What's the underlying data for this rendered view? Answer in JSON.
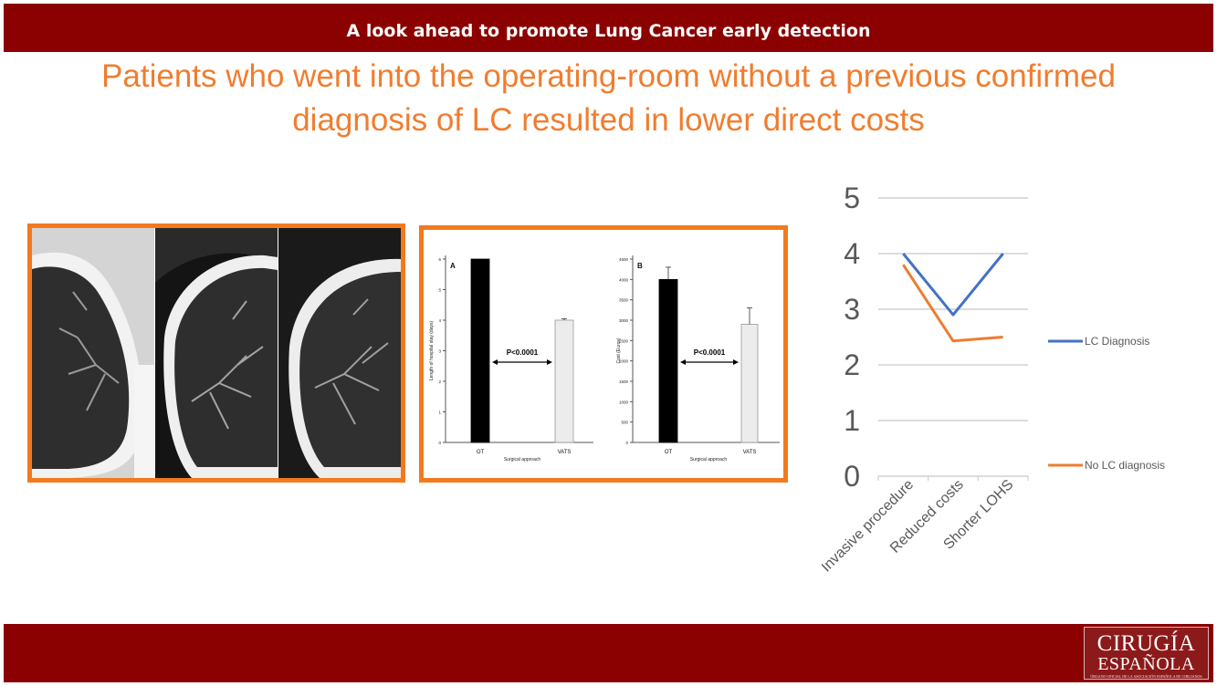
{
  "header": {
    "title": "A look ahead to promote Lung Cancer early detection"
  },
  "headline": {
    "line1": "Patients who went into the operating-room without a previous confirmed",
    "line2": "diagnosis of LC resulted in lower direct costs"
  },
  "colors": {
    "brand": "#8b0000",
    "accent": "#f27a1e",
    "lc_diagnosis": "#4472c4",
    "no_lc_diagnosis": "#ed7d31"
  },
  "logo": {
    "line1": "CIRUGÍA",
    "line2": "ESPAÑOLA",
    "line3": "ÓRGANO OFICIAL DE LA ASOCIACIÓN ESPAÑOLA DE CIRUJANOS"
  },
  "chart_data": [
    {
      "type": "bar",
      "panel": "A",
      "categories": [
        "OT",
        "VATS"
      ],
      "values": [
        6,
        4
      ],
      "errors": [
        0,
        0.05
      ],
      "ylabel": "Length of hospital stay (days)",
      "xlabel": "Surgical approach",
      "ylim": [
        0,
        6
      ],
      "yticks": [
        "0",
        "1",
        "2",
        "3",
        "4",
        "5",
        "6"
      ],
      "annotation": "P<0.0001"
    },
    {
      "type": "bar",
      "panel": "B",
      "categories": [
        "OT",
        "VATS"
      ],
      "values": [
        4000,
        2900
      ],
      "errors": [
        300,
        400
      ],
      "ylabel": "Cost (Euros)",
      "xlabel": "Surgical approach",
      "ylim": [
        0,
        4500
      ],
      "yticks": [
        "0",
        "500",
        "1000",
        "1500",
        "2000",
        "2500",
        "3000",
        "3500",
        "4000",
        "4500"
      ],
      "annotation": "P<0.0001"
    },
    {
      "type": "line",
      "categories": [
        "Invasive procedure",
        "Reduced costs",
        "Shorter LOHS"
      ],
      "series": [
        {
          "name": "LC Diagnosis",
          "values": [
            4.0,
            2.9,
            4.0
          ]
        },
        {
          "name": "No LC diagnosis",
          "values": [
            3.8,
            2.43,
            2.5
          ]
        }
      ],
      "ylim": [
        0,
        5
      ],
      "yticks": [
        "0",
        "1",
        "2",
        "3",
        "4",
        "5"
      ],
      "grid": true,
      "legend": "right"
    }
  ]
}
